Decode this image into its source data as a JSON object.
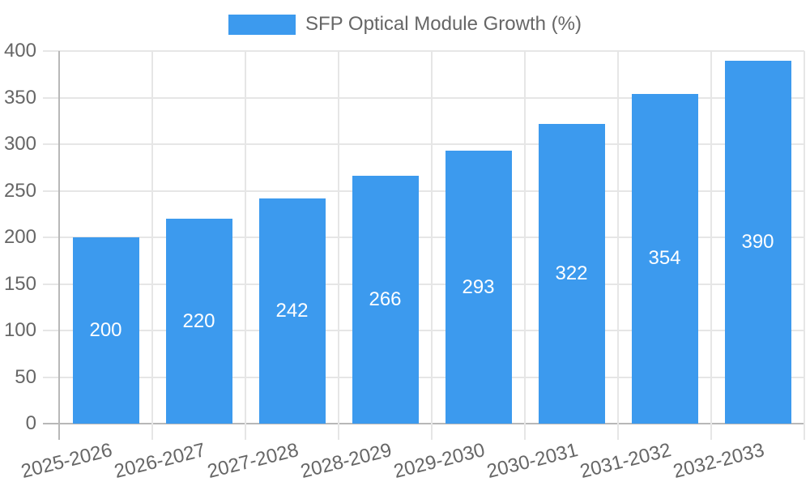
{
  "chart_data": {
    "type": "bar",
    "title": "",
    "legend": "SFP Optical Module Growth (%)",
    "legend_position": "top-center",
    "categories": [
      "2025-2026",
      "2026-2027",
      "2027-2028",
      "2028-2029",
      "2029-2030",
      "2030-2031",
      "2031-2032",
      "2032-2033"
    ],
    "series": [
      {
        "name": "SFP Optical Module Growth (%)",
        "values": [
          200,
          220,
          242,
          266,
          293,
          322,
          354,
          390
        ]
      }
    ],
    "value_labels": [
      "200",
      "220",
      "242",
      "266",
      "293",
      "322",
      "354",
      "390"
    ],
    "xlabel": "",
    "ylabel": "",
    "ylim": [
      0,
      400
    ],
    "yticks": [
      0,
      50,
      100,
      150,
      200,
      250,
      300,
      350,
      400
    ],
    "grid": true,
    "x_label_rotation_deg": -14,
    "colors": {
      "bar": "#3C9AEE",
      "value_label": "#FFFFFF",
      "axis_text": "#666666",
      "legend_text": "#666666",
      "gridline": "#E6E6E6",
      "axis_line": "#B8B8B8"
    }
  }
}
